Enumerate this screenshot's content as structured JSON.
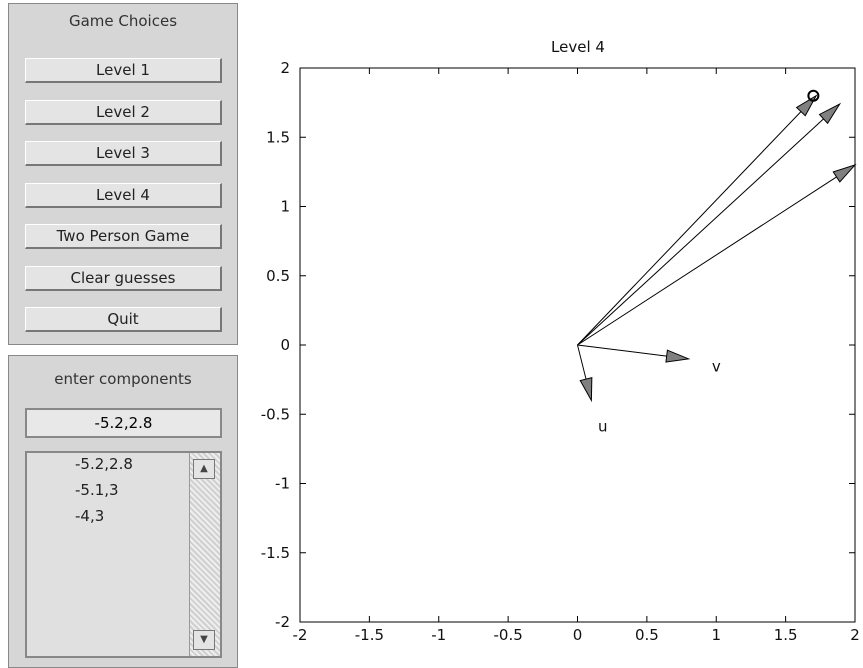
{
  "panels": {
    "choices_title": "Game Choices",
    "buttons": [
      "Level 1",
      "Level 2",
      "Level 3",
      "Level 4",
      "Two Person Game",
      "Clear guesses",
      "Quit"
    ],
    "entry_title": "enter components",
    "entry_value": "-5.2,2.8",
    "guess_list": [
      "-5.2,2.8",
      "-5.1,3",
      "-4,3"
    ]
  },
  "chart_data": {
    "type": "vector",
    "title": "Level 4",
    "vectors": [
      {
        "label": "u",
        "x": 0.1,
        "y": -0.4
      },
      {
        "label": "v",
        "x": 0.8,
        "y": -0.1
      }
    ],
    "guesses": [
      {
        "x": 1.72,
        "y": 1.8
      },
      {
        "x": 1.89,
        "y": 1.74
      },
      {
        "x": 2.0,
        "y": 1.3
      }
    ],
    "target": {
      "x": 1.7,
      "y": 1.8
    },
    "xlim": [
      -2,
      2
    ],
    "ylim": [
      -2,
      2
    ],
    "xticks": [
      -2,
      -1.5,
      -1,
      -0.5,
      0,
      0.5,
      1,
      1.5,
      2
    ],
    "yticks": [
      -2,
      -1.5,
      -1,
      -0.5,
      0,
      0.5,
      1,
      1.5,
      2
    ],
    "color": "#808080"
  }
}
